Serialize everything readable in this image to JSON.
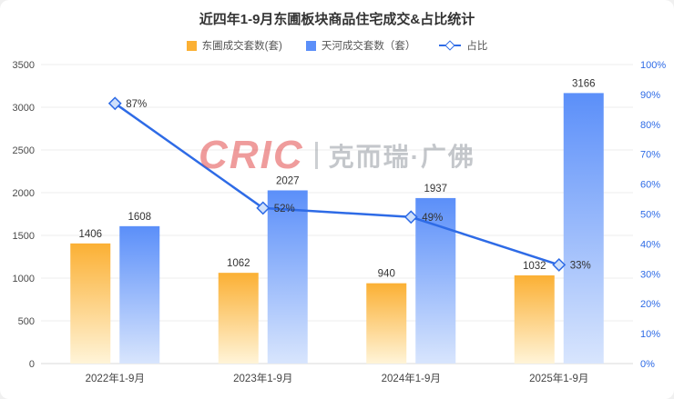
{
  "chart_data": {
    "type": "bar+line",
    "title": "近四年1-9月东圃板块商品住宅成交&占比统计",
    "categories": [
      "2022年1-9月",
      "2023年1-9月",
      "2024年1-9月",
      "2025年1-9月"
    ],
    "series": [
      {
        "name": "东圃成交套数(套)",
        "type": "bar",
        "values": [
          1406,
          1062,
          940,
          1032
        ],
        "color_top": "#FBB034",
        "color_bottom": "#FFF4D8"
      },
      {
        "name": "天河成交套数（套）",
        "type": "bar",
        "values": [
          1608,
          2027,
          1937,
          3166
        ],
        "color_top": "#5B8FF9",
        "color_bottom": "#D8E5FD"
      },
      {
        "name": "占比",
        "type": "line",
        "values": [
          87,
          52,
          49,
          33
        ],
        "unit": "%",
        "color": "#2E6BE6",
        "marker": "diamond"
      }
    ],
    "left_axis": {
      "min": 0,
      "max": 3500,
      "step": 500,
      "ticks": [
        "0",
        "500",
        "1000",
        "1500",
        "2000",
        "2500",
        "3000",
        "3500"
      ]
    },
    "right_axis": {
      "min": 0,
      "max": 100,
      "step": 10,
      "color": "#2E6BE6",
      "ticks": [
        "0%",
        "10%",
        "20%",
        "30%",
        "40%",
        "50%",
        "60%",
        "70%",
        "80%",
        "90%",
        "100%"
      ]
    },
    "grid": true,
    "legend_position": "top"
  },
  "watermark": {
    "brand": "CRIC",
    "text": "克而瑞·广佛"
  }
}
